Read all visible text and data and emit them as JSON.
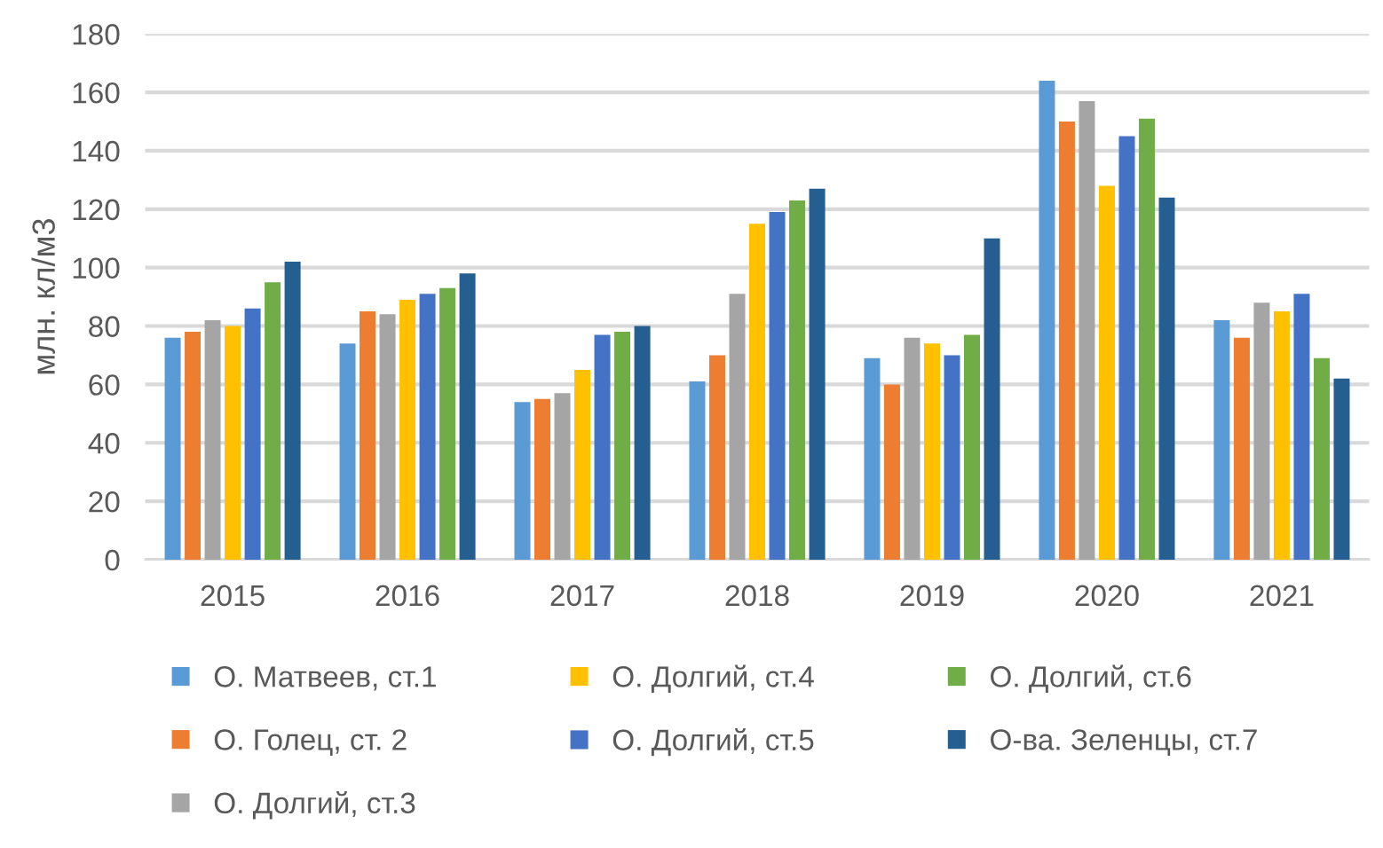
{
  "chart_data": {
    "type": "bar",
    "ylabel": "млн. кл/м3",
    "categories": [
      "2015",
      "2016",
      "2017",
      "2018",
      "2019",
      "2020",
      "2021"
    ],
    "series": [
      {
        "name": "О. Матвеев, ст.1",
        "color": "#5b9bd5",
        "values": [
          76,
          74,
          54,
          61,
          69,
          164,
          82
        ]
      },
      {
        "name": "О. Голец, ст. 2",
        "color": "#ed7d31",
        "values": [
          78,
          85,
          55,
          70,
          60,
          150,
          76
        ]
      },
      {
        "name": "О. Долгий, ст.3",
        "color": "#a5a5a5",
        "values": [
          82,
          84,
          57,
          91,
          76,
          157,
          88
        ]
      },
      {
        "name": "О. Долгий, ст.4",
        "color": "#ffc000",
        "values": [
          80,
          89,
          65,
          115,
          74,
          128,
          85
        ]
      },
      {
        "name": "О. Долгий, ст.5",
        "color": "#4472c4",
        "values": [
          86,
          91,
          77,
          119,
          70,
          145,
          91
        ]
      },
      {
        "name": "О. Долгий, ст.6",
        "color": "#70ad47",
        "values": [
          95,
          93,
          78,
          123,
          77,
          151,
          69
        ]
      },
      {
        "name": "О-ва. Зеленцы, ст.7",
        "color": "#255e91",
        "values": [
          102,
          98,
          80,
          127,
          110,
          124,
          62
        ]
      }
    ],
    "ylim": [
      0,
      180
    ],
    "yticks": [
      0,
      20,
      40,
      60,
      80,
      100,
      120,
      140,
      160,
      180
    ],
    "grid": "y",
    "legend": "bottom"
  }
}
